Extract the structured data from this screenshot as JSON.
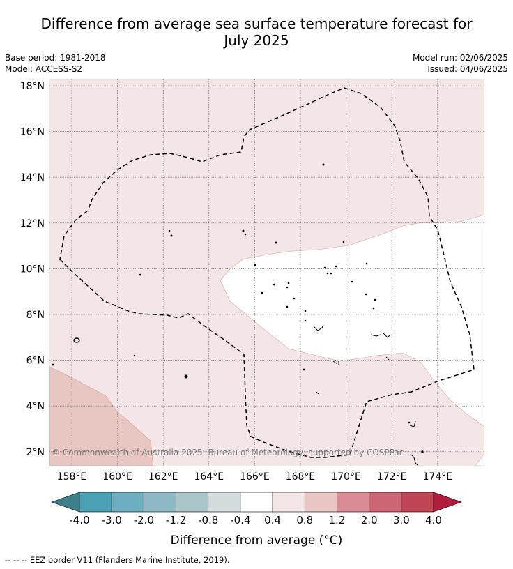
{
  "title": {
    "line1": "Difference from average sea surface temperature forecast for",
    "line2": "July 2025"
  },
  "meta": {
    "base_period": "Base period: 1981-2018",
    "model": "Model: ACCESS-S2",
    "model_run": "Model run: 02/06/2025",
    "issued": "Issued: 04/06/2025"
  },
  "map": {
    "lat_labels": [
      "18°N",
      "16°N",
      "14°N",
      "12°N",
      "10°N",
      "8°N",
      "6°N",
      "4°N",
      "2°N"
    ],
    "lon_labels": [
      "158°E",
      "160°E",
      "162°E",
      "164°E",
      "166°E",
      "168°E",
      "170°E",
      "172°E",
      "174°E"
    ],
    "copyright": "© Commonwealth of Australia 2025, Bureau of Meteorology, supported by COSPPac"
  },
  "legend": {
    "title": "Difference from average (°C)",
    "ticks": [
      "-4.0",
      "-3.0",
      "-2.0",
      "-1.2",
      "-0.8",
      "-0.4",
      "0.4",
      "0.8",
      "1.2",
      "2.0",
      "3.0",
      "4.0"
    ],
    "under_color": "#3d7f8b",
    "over_color": "#b21d3d",
    "bin_colors": [
      "#4aa0b4",
      "#6bafc0",
      "#8db9c5",
      "#a9c6cb",
      "#d3dbdd",
      "#ffffff",
      "#f4e6e6",
      "#e9c5c3",
      "#d98c96",
      "#cc6674",
      "#c04654"
    ]
  },
  "footnote": "--  --  -- EEZ border V11 (Flanders Marine Institute, 2019)."
}
